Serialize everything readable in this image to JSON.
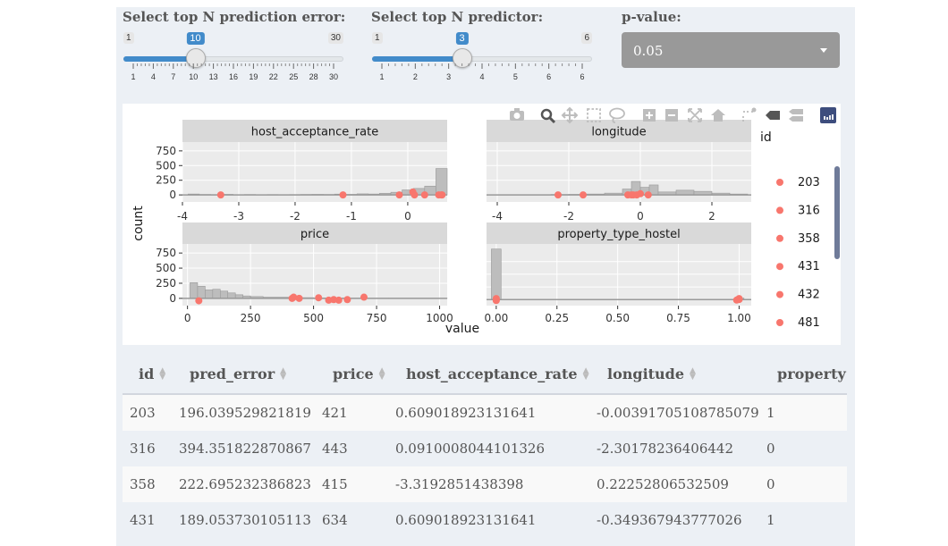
{
  "controls": {
    "slider_error": {
      "label": "Select top N prediction error:",
      "min": 1,
      "max": 30,
      "value": 10,
      "ticks": [
        "1",
        "4",
        "7",
        "10",
        "13",
        "16",
        "19",
        "22",
        "25",
        "28",
        "30"
      ]
    },
    "slider_predictor": {
      "label": "Select top N predictor:",
      "min": 1,
      "max": 6,
      "value": 3,
      "ticks": [
        "1",
        "2",
        "3",
        "4",
        "5",
        "6",
        "6"
      ]
    },
    "pvalue": {
      "label": "p-value:",
      "selected": "0.05"
    }
  },
  "toolbar": {
    "icons": [
      "camera-icon",
      "zoom-icon",
      "pan-icon",
      "box-select-icon",
      "lasso-icon",
      "zoom-in-icon",
      "zoom-out-icon",
      "autoscale-icon",
      "reset-axes-icon",
      "spike-lines-icon",
      "hover-closest-icon",
      "hover-compare-icon",
      "plotly-logo-icon"
    ]
  },
  "chart_data": {
    "type": "bar",
    "xlabel": "value",
    "ylabel": "count",
    "legend": {
      "title": "id",
      "placement": "right",
      "items": [
        "203",
        "316",
        "358",
        "431",
        "432",
        "481"
      ],
      "point_color": "#f8766d"
    },
    "panels": [
      {
        "title": "host_acceptance_rate",
        "xlim": [
          -4,
          0.7
        ],
        "ylim": [
          -120,
          900
        ],
        "xticks": [
          "-4",
          "-3",
          "-2",
          "-1",
          "0"
        ],
        "xtick_values": [
          -4,
          -3,
          -2,
          -1,
          0
        ],
        "yticks": [
          "750",
          "500",
          "250",
          "0"
        ],
        "ytick_values": [
          750,
          500,
          250,
          0
        ],
        "bins": [
          {
            "x0": -3.9,
            "x1": -3.7,
            "c": 15
          },
          {
            "x0": -3.7,
            "x1": -3.5,
            "c": 8
          },
          {
            "x0": -3.5,
            "x1": -3.3,
            "c": 6
          },
          {
            "x0": -3.3,
            "x1": -3.1,
            "c": 10
          },
          {
            "x0": -3.1,
            "x1": -2.9,
            "c": 5
          },
          {
            "x0": -2.9,
            "x1": -2.7,
            "c": 7
          },
          {
            "x0": -2.7,
            "x1": -2.5,
            "c": 4
          },
          {
            "x0": -2.5,
            "x1": -2.3,
            "c": 6
          },
          {
            "x0": -2.3,
            "x1": -2.1,
            "c": 5
          },
          {
            "x0": -2.1,
            "x1": -1.9,
            "c": 6
          },
          {
            "x0": -1.9,
            "x1": -1.7,
            "c": 8
          },
          {
            "x0": -1.7,
            "x1": -1.5,
            "c": 10
          },
          {
            "x0": -1.5,
            "x1": -1.3,
            "c": 8
          },
          {
            "x0": -1.3,
            "x1": -1.1,
            "c": 14
          },
          {
            "x0": -1.1,
            "x1": -0.9,
            "c": 10
          },
          {
            "x0": -0.9,
            "x1": -0.7,
            "c": 18
          },
          {
            "x0": -0.7,
            "x1": -0.5,
            "c": 15
          },
          {
            "x0": -0.5,
            "x1": -0.3,
            "c": 28
          },
          {
            "x0": -0.3,
            "x1": -0.1,
            "c": 45
          },
          {
            "x0": -0.1,
            "x1": 0.1,
            "c": 85
          },
          {
            "x0": 0.1,
            "x1": 0.3,
            "c": 110
          },
          {
            "x0": 0.3,
            "x1": 0.5,
            "c": 150
          },
          {
            "x0": 0.5,
            "x1": 0.7,
            "c": 450
          }
        ],
        "points": [
          {
            "x": -3.32,
            "y": 0
          },
          {
            "x": -1.15,
            "y": 0
          },
          {
            "x": -0.15,
            "y": 0
          },
          {
            "x": 0.09,
            "y": 50
          },
          {
            "x": 0.12,
            "y": 0
          },
          {
            "x": 0.3,
            "y": 0
          },
          {
            "x": 0.55,
            "y": 0
          },
          {
            "x": 0.6,
            "y": 0
          },
          {
            "x": 0.61,
            "y": 0
          }
        ]
      },
      {
        "title": "longitude",
        "xlim": [
          -4.3,
          3.1
        ],
        "ylim": [
          -120,
          900
        ],
        "xticks": [
          "-4",
          "-2",
          "0",
          "2"
        ],
        "xtick_values": [
          -4,
          -2,
          0,
          2
        ],
        "yticks": [],
        "ytick_values": [],
        "bins": [
          {
            "x0": -4,
            "x1": -3.5,
            "c": 5
          },
          {
            "x0": -3.5,
            "x1": -3,
            "c": 5
          },
          {
            "x0": -3,
            "x1": -2.5,
            "c": 5
          },
          {
            "x0": -2.5,
            "x1": -2,
            "c": 8
          },
          {
            "x0": -2,
            "x1": -1.5,
            "c": 10
          },
          {
            "x0": -1.5,
            "x1": -1,
            "c": 15
          },
          {
            "x0": -1,
            "x1": -0.5,
            "c": 30
          },
          {
            "x0": -0.5,
            "x1": -0.25,
            "c": 100
          },
          {
            "x0": -0.25,
            "x1": 0,
            "c": 230
          },
          {
            "x0": 0,
            "x1": 0.25,
            "c": 130
          },
          {
            "x0": 0.25,
            "x1": 0.5,
            "c": 170
          },
          {
            "x0": 0.5,
            "x1": 1,
            "c": 50
          },
          {
            "x0": 1,
            "x1": 1.5,
            "c": 80
          },
          {
            "x0": 1.5,
            "x1": 2,
            "c": 60
          },
          {
            "x0": 2,
            "x1": 2.5,
            "c": 30
          },
          {
            "x0": 2.5,
            "x1": 3,
            "c": 15
          }
        ],
        "points": [
          {
            "x": -2.3,
            "y": 0
          },
          {
            "x": -1.6,
            "y": 0
          },
          {
            "x": -0.35,
            "y": 0
          },
          {
            "x": -0.25,
            "y": 0
          },
          {
            "x": -0.2,
            "y": 0
          },
          {
            "x": -0.1,
            "y": 0
          },
          {
            "x": 0.0,
            "y": 20
          },
          {
            "x": 0.22,
            "y": 0
          }
        ]
      },
      {
        "title": "price",
        "xlim": [
          -20,
          1030
        ],
        "ylim": [
          -120,
          900
        ],
        "xticks": [
          "0",
          "250",
          "500",
          "750",
          "1000"
        ],
        "xtick_values": [
          0,
          250,
          500,
          750,
          1000
        ],
        "yticks": [
          "750",
          "500",
          "250",
          "0"
        ],
        "ytick_values": [
          750,
          500,
          250,
          0
        ],
        "bins": [
          {
            "x0": 10,
            "x1": 40,
            "c": 260
          },
          {
            "x0": 40,
            "x1": 70,
            "c": 200
          },
          {
            "x0": 70,
            "x1": 100,
            "c": 140
          },
          {
            "x0": 100,
            "x1": 130,
            "c": 150
          },
          {
            "x0": 130,
            "x1": 160,
            "c": 120
          },
          {
            "x0": 160,
            "x1": 190,
            "c": 90
          },
          {
            "x0": 190,
            "x1": 220,
            "c": 60
          },
          {
            "x0": 220,
            "x1": 250,
            "c": 40
          },
          {
            "x0": 250,
            "x1": 300,
            "c": 30
          },
          {
            "x0": 300,
            "x1": 400,
            "c": 20
          },
          {
            "x0": 400,
            "x1": 500,
            "c": 12
          },
          {
            "x0": 500,
            "x1": 600,
            "c": 8
          },
          {
            "x0": 600,
            "x1": 700,
            "c": 5
          },
          {
            "x0": 700,
            "x1": 800,
            "c": 4
          },
          {
            "x0": 800,
            "x1": 900,
            "c": 3
          },
          {
            "x0": 900,
            "x1": 1000,
            "c": 3
          },
          {
            "x0": 1000,
            "x1": 1030,
            "c": 2
          }
        ],
        "points": [
          {
            "x": 45,
            "y": -40
          },
          {
            "x": 415,
            "y": 0
          },
          {
            "x": 421,
            "y": 20
          },
          {
            "x": 443,
            "y": 0
          },
          {
            "x": 520,
            "y": 10
          },
          {
            "x": 560,
            "y": -30
          },
          {
            "x": 580,
            "y": -20
          },
          {
            "x": 600,
            "y": -30
          },
          {
            "x": 634,
            "y": -20
          },
          {
            "x": 700,
            "y": 20
          }
        ]
      },
      {
        "title": "property_type_hostel",
        "xlim": [
          -0.04,
          1.05
        ],
        "ylim": [
          -120,
          1100
        ],
        "xticks": [
          "0.00",
          "0.25",
          "0.50",
          "0.75",
          "1.00"
        ],
        "xtick_values": [
          0,
          0.25,
          0.5,
          0.75,
          1
        ],
        "yticks": [],
        "ytick_values": [],
        "bins": [
          {
            "x0": -0.02,
            "x1": 0.02,
            "c": 1000
          },
          {
            "x0": 0.02,
            "x1": 0.98,
            "c": 0
          },
          {
            "x0": 0.98,
            "x1": 1.02,
            "c": 30
          }
        ],
        "points": [
          {
            "x": 0.0,
            "y": 0
          },
          {
            "x": 0.0,
            "y": 20
          },
          {
            "x": 0.0,
            "y": -20
          },
          {
            "x": 1.0,
            "y": 0
          },
          {
            "x": 1.0,
            "y": 20
          },
          {
            "x": 0.99,
            "y": -10
          }
        ]
      }
    ]
  },
  "table": {
    "columns": [
      "id",
      "pred_error",
      "price",
      "host_acceptance_rate",
      "longitude",
      "property"
    ],
    "rows": [
      [
        "203",
        "196.039529821819",
        "421",
        "0.609018923131641",
        "-0.00391705108785079",
        "1"
      ],
      [
        "316",
        "394.351822870867",
        "443",
        "0.0910008044101326",
        "-2.30178236406442",
        "0"
      ],
      [
        "358",
        "222.695232386823",
        "415",
        "-3.3192851438398",
        "0.22252806532509",
        "0"
      ],
      [
        "431",
        "189.053730105113",
        "634",
        "0.609018923131641",
        "-0.349367943777026",
        "1"
      ]
    ]
  }
}
